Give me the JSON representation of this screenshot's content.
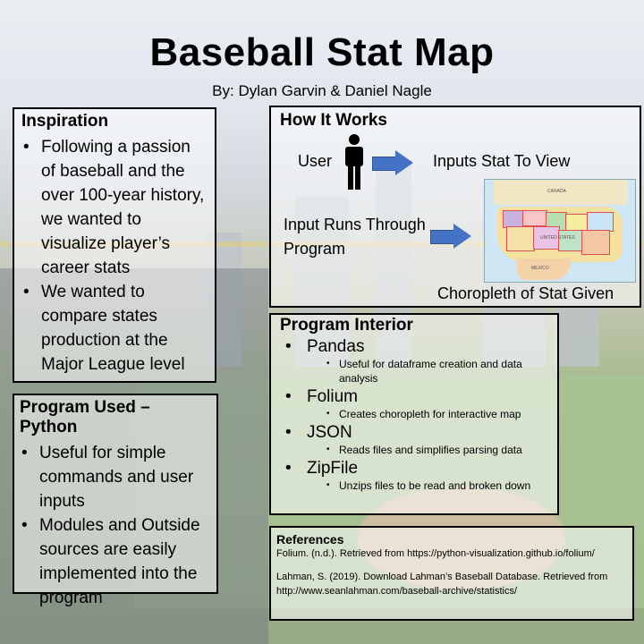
{
  "title": "Baseball Stat Map",
  "byline": "By: Dylan Garvin & Daniel Nagle",
  "inspiration": {
    "heading": "Inspiration",
    "bullets": [
      "Following a passion of baseball and the over 100-year history, we wanted to visualize player’s career stats",
      "We wanted to compare states production at the Major League level"
    ]
  },
  "program_used": {
    "heading": "Program Used – Python",
    "bullets": [
      "Useful for simple commands and user inputs",
      "Modules and Outside sources are easily implemented into the program"
    ]
  },
  "how_it_works": {
    "heading": "How It Works",
    "user": "User",
    "inputs_stat": "Inputs Stat To View",
    "input_runs": "Input Runs Through Program",
    "choropleth": "Choropleth of Stat Given",
    "map_labels": [
      "CANADA",
      "UNITED STATES",
      "MEXICO"
    ]
  },
  "program_interior": {
    "heading": "Program Interior",
    "items": [
      {
        "name": "Pandas",
        "desc": "Useful for dataframe creation and data analysis"
      },
      {
        "name": "Folium",
        "desc": "Creates choropleth for interactive map"
      },
      {
        "name": "JSON",
        "desc": "Reads files and simplifies parsing data"
      },
      {
        "name": "ZipFile",
        "desc": "Unzips files to be read and broken down"
      }
    ]
  },
  "references": {
    "heading": "References",
    "entries": [
      "Folium. (n.d.). Retrieved from https://python-visualization.github.io/folium/",
      "Lahman, S. (2019). Download Lahman’s Baseball Database. Retrieved from http://www.seanlahman.com/baseball-archive/statistics/"
    ]
  },
  "colors": {
    "arrow": "#4472c4",
    "border": "#000000"
  }
}
